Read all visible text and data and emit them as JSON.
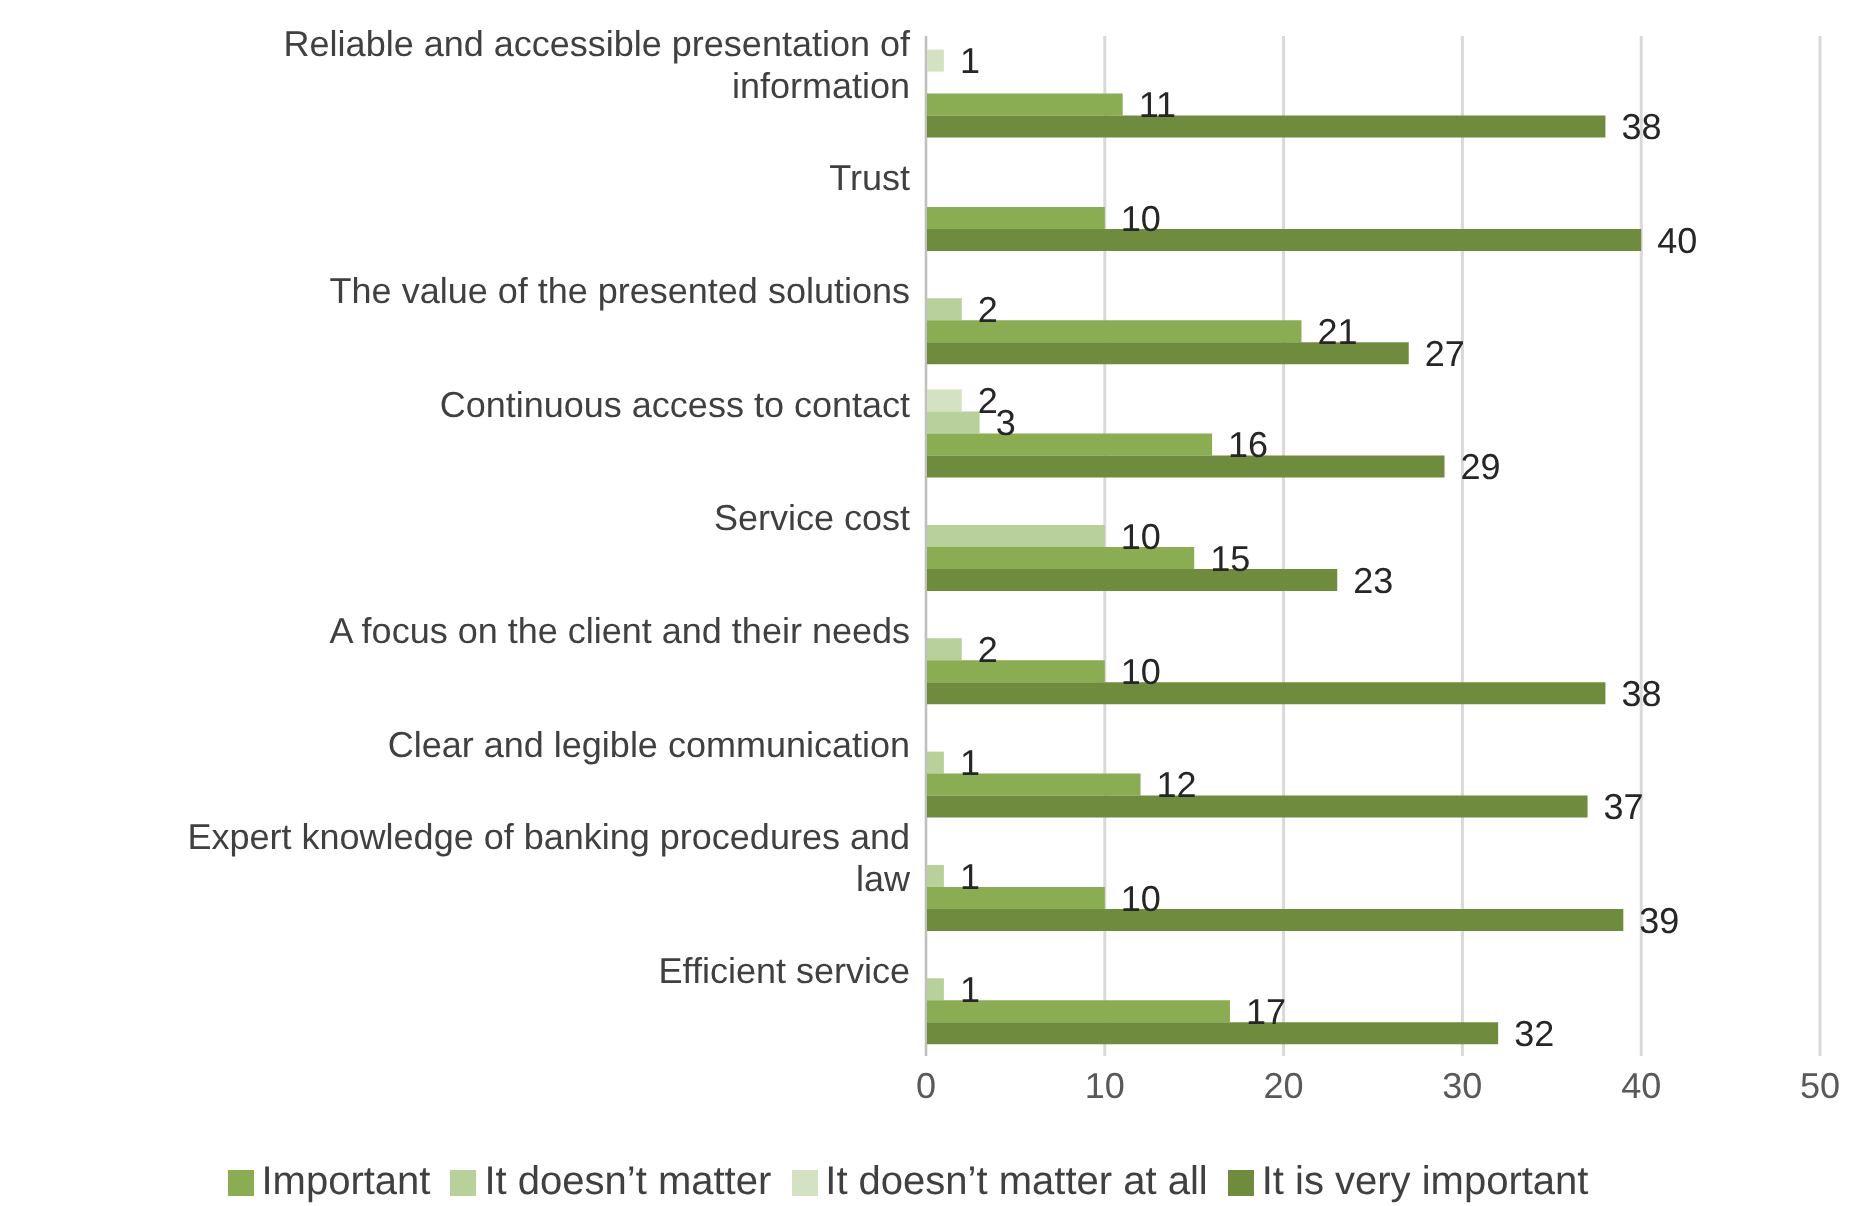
{
  "chart_data": {
    "type": "bar",
    "orientation": "horizontal",
    "categories": [
      "Reliable and accessible presentation of information",
      "Trust",
      "The value of the presented solutions",
      "Continuous access to contact",
      "Service cost",
      "A focus on the client and their needs",
      "Clear and legible communication",
      "Expert knowledge of banking procedures and law",
      "Efficient service"
    ],
    "series": [
      {
        "name": "It doesn’t matter at all",
        "color": "#d4e2c4",
        "values": [
          1,
          null,
          null,
          2,
          null,
          null,
          null,
          null,
          null
        ]
      },
      {
        "name": "It doesn’t matter",
        "color": "#b8d09a",
        "values": [
          null,
          null,
          2,
          3,
          10,
          2,
          1,
          1,
          1
        ]
      },
      {
        "name": "Important",
        "color": "#8aac52",
        "values": [
          11,
          10,
          21,
          16,
          15,
          10,
          12,
          10,
          17
        ]
      },
      {
        "name": "It is very important",
        "color": "#6f8c3e",
        "values": [
          38,
          40,
          27,
          29,
          23,
          38,
          37,
          39,
          32
        ]
      }
    ],
    "xlim": [
      0,
      50
    ],
    "xticks": [
      0,
      10,
      20,
      30,
      40,
      50
    ],
    "grid": "x",
    "legend": "bottom",
    "data_labels": true
  }
}
